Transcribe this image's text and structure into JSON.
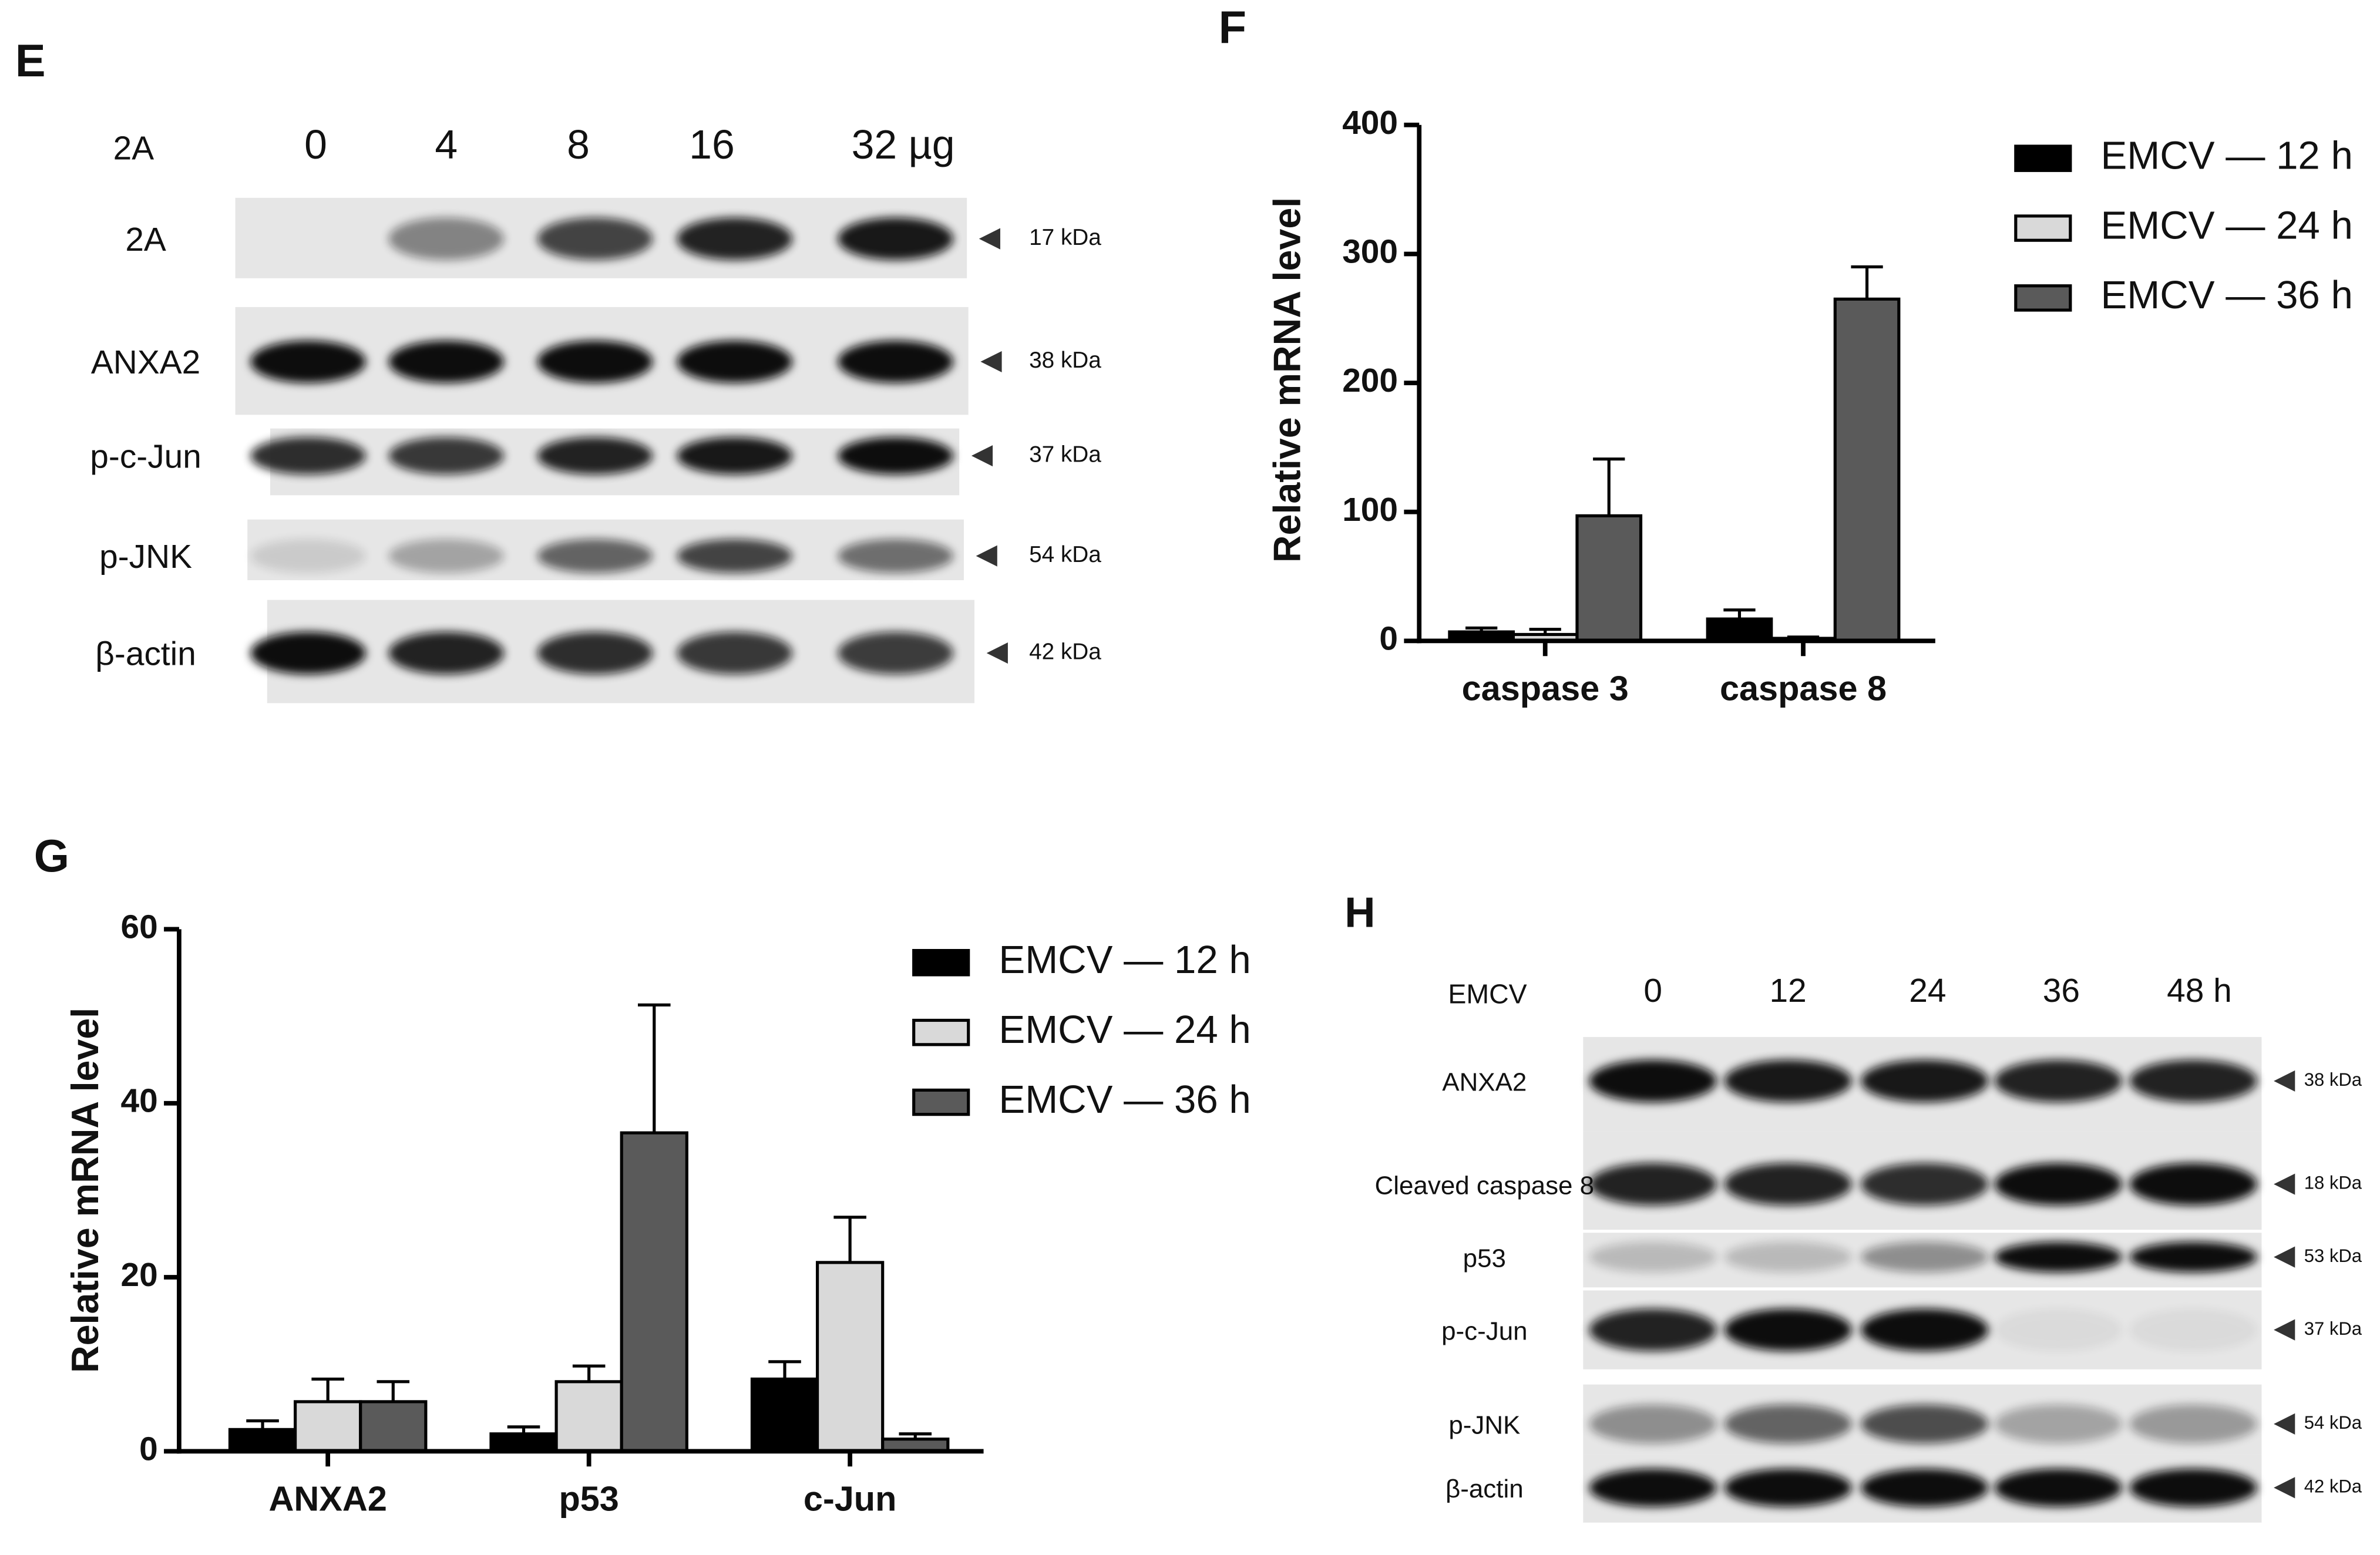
{
  "chart_data": [
    {
      "type": "bar",
      "panel": "F",
      "ylabel": "Relative mRNA level",
      "categories": [
        "caspase 3",
        "caspase 8"
      ],
      "ylim": [
        0,
        400
      ],
      "yticks": [
        0,
        100,
        200,
        300,
        400
      ],
      "series": [
        {
          "name": "EMCV — 12 h",
          "color": "#000000",
          "values": [
            7,
            17
          ],
          "errors": [
            3,
            7
          ]
        },
        {
          "name": "EMCV — 24 h",
          "color": "#d9d9d9",
          "values": [
            5,
            2
          ],
          "errors": [
            4,
            1
          ]
        },
        {
          "name": "EMCV — 36 h",
          "color": "#5a5a5a",
          "values": [
            97,
            265
          ],
          "errors": [
            44,
            25
          ]
        }
      ]
    },
    {
      "type": "bar",
      "panel": "G",
      "ylabel": "Relative mRNA level",
      "categories": [
        "ANXA2",
        "p53",
        "c-Jun"
      ],
      "ylim": [
        0,
        60
      ],
      "yticks": [
        0,
        20,
        40,
        60
      ],
      "series": [
        {
          "name": "EMCV — 12 h",
          "color": "#000000",
          "values": [
            2.5,
            2,
            8.3
          ],
          "errors": [
            1,
            0.8,
            2
          ]
        },
        {
          "name": "EMCV — 24 h",
          "color": "#d9d9d9",
          "values": [
            5.7,
            8,
            21.7
          ],
          "errors": [
            2.6,
            1.8,
            5.2
          ]
        },
        {
          "name": "EMCV — 36 h",
          "color": "#5a5a5a",
          "values": [
            5.7,
            36.6,
            1.4
          ],
          "errors": [
            2.3,
            14.7,
            0.6
          ]
        }
      ]
    }
  ],
  "blots": [
    {
      "panel": "E",
      "header": "2A",
      "lanes": [
        "0",
        "4",
        "8",
        "16",
        "32 µg"
      ],
      "rows": [
        {
          "label": "2A",
          "kda": "17 kDa"
        },
        {
          "label": "ANXA2",
          "kda": "38 kDa"
        },
        {
          "label": "p-c-Jun",
          "kda": "37 kDa"
        },
        {
          "label": "p-JNK",
          "kda": "54 kDa"
        },
        {
          "label": "β-actin",
          "kda": "42 kDa"
        }
      ]
    },
    {
      "panel": "H",
      "header": "EMCV",
      "lanes": [
        "0",
        "12",
        "24",
        "36",
        "48 h"
      ],
      "rows": [
        {
          "label": "ANXA2",
          "kda": "38 kDa"
        },
        {
          "label": "Cleaved caspase 8",
          "kda": "18 kDa"
        },
        {
          "label": "p53",
          "kda": "53 kDa"
        },
        {
          "label": "p-c-Jun",
          "kda": "37 kDa"
        },
        {
          "label": "p-JNK",
          "kda": "54 kDa"
        },
        {
          "label": "β-actin",
          "kda": "42 kDa"
        }
      ]
    }
  ]
}
